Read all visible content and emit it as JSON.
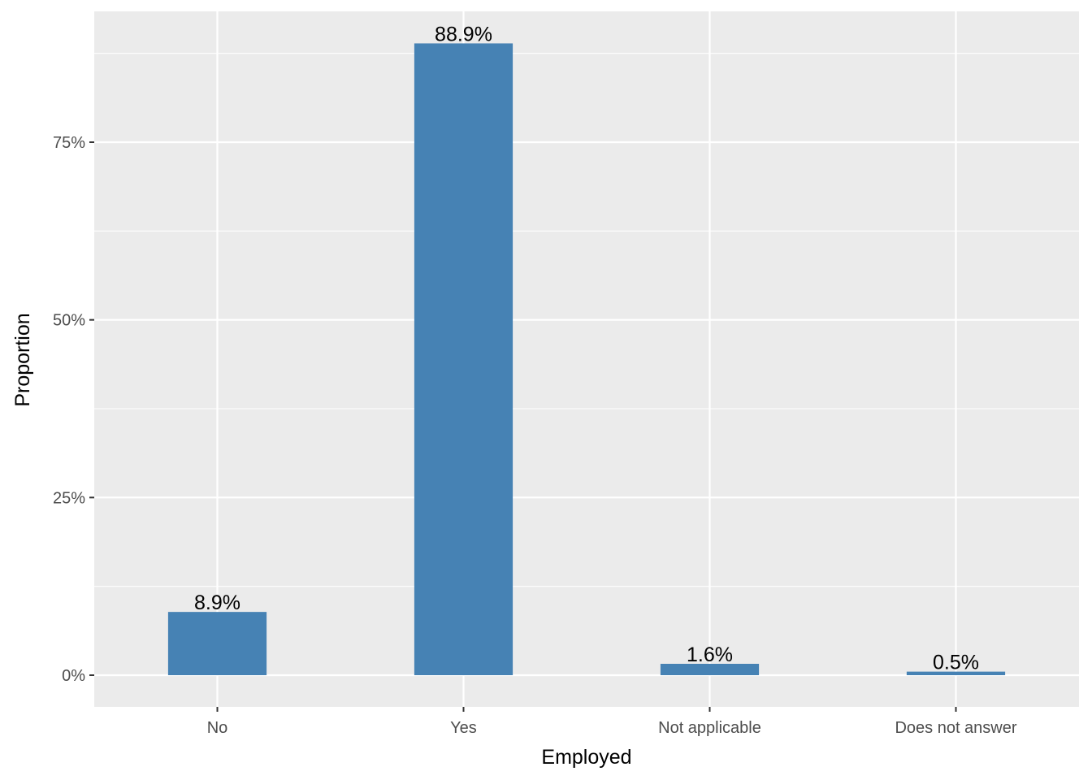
{
  "chart_data": {
    "type": "bar",
    "title": "",
    "xlabel": "Employed",
    "ylabel": "Proportion",
    "categories": [
      "No",
      "Yes",
      "Not applicable",
      "Does not answer"
    ],
    "values": [
      8.9,
      88.9,
      1.6,
      0.5
    ],
    "data_labels": [
      "8.9%",
      "88.9%",
      "1.6%",
      "0.5%"
    ],
    "y_ticks": [
      0,
      25,
      50,
      75
    ],
    "y_tick_labels": [
      "0%",
      "25%",
      "50%",
      "75%"
    ],
    "ylim": [
      -4.45,
      93.35
    ],
    "grid": true,
    "legend": "none",
    "colors": {
      "bar": "#4682b4",
      "panel": "#ebebeb",
      "grid": "#ffffff"
    }
  }
}
